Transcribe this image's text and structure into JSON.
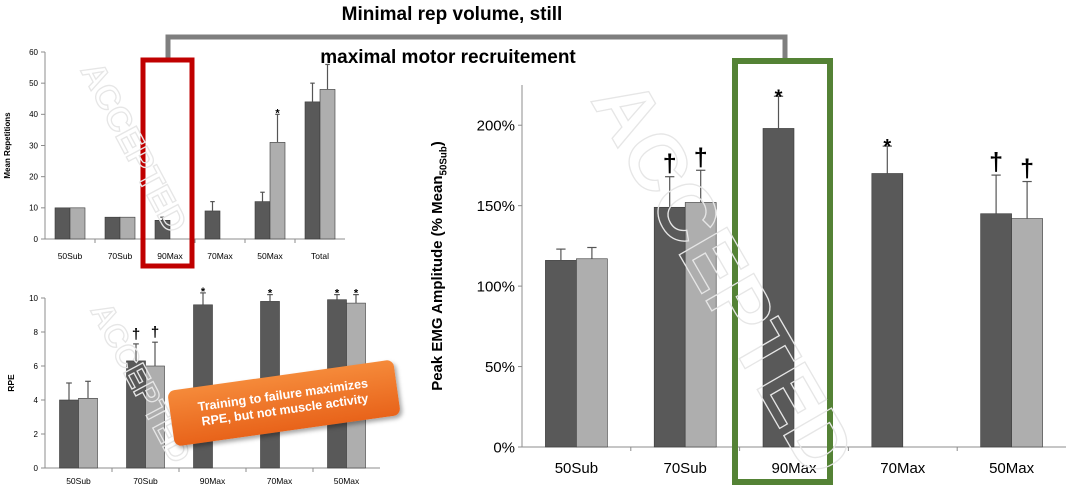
{
  "headline": {
    "line1": "Minimal rep volume, still",
    "line2": "maximal motor recruitement"
  },
  "callout": {
    "text": "Training to failure maximizes RPE, but not muscle activity"
  },
  "watermark": "ACCEPTED",
  "colors": {
    "dark_bar": "#595959",
    "light_bar": "#aeaeae",
    "red_box": "#c00000",
    "green_box": "#548235",
    "bracket": "#7f7f7f",
    "callout": "#ed7125"
  },
  "chart_data": [
    {
      "id": "reps",
      "type": "bar",
      "ylabel": "Mean Repetitions",
      "ylim": [
        0,
        60
      ],
      "yticks": [
        "0",
        "10",
        "20",
        "30",
        "40",
        "50",
        "60"
      ],
      "categories": [
        "50Sub",
        "70Sub",
        "90Max",
        "70Max",
        "50Max",
        "Total"
      ],
      "series": [
        {
          "name": "dark",
          "values": [
            10,
            7,
            6,
            9,
            12,
            44
          ],
          "errors": [
            0,
            0,
            1,
            3,
            3,
            6
          ]
        },
        {
          "name": "light",
          "values": [
            10,
            7,
            null,
            null,
            31,
            48
          ],
          "errors": [
            0,
            0,
            null,
            null,
            9,
            8
          ]
        }
      ],
      "annotations": [
        {
          "category": 4,
          "series": 1,
          "symbol": "*"
        }
      ]
    },
    {
      "id": "rpe",
      "type": "bar",
      "ylabel": "RPE",
      "ylim": [
        0,
        10
      ],
      "yticks": [
        "0",
        "2",
        "4",
        "6",
        "8",
        "10"
      ],
      "categories": [
        "50Sub",
        "70Sub",
        "90Max",
        "70Max",
        "50Max"
      ],
      "series": [
        {
          "name": "dark",
          "values": [
            4.0,
            6.3,
            9.6,
            9.8,
            9.9
          ],
          "errors": [
            1.0,
            1.0,
            0.7,
            0.4,
            0.3
          ]
        },
        {
          "name": "light",
          "values": [
            4.1,
            6.0,
            null,
            null,
            9.7
          ],
          "errors": [
            1.0,
            1.4,
            null,
            null,
            0.5
          ]
        }
      ],
      "annotations": [
        {
          "category": 1,
          "series": 0,
          "symbol": "†"
        },
        {
          "category": 1,
          "series": 1,
          "symbol": "†"
        },
        {
          "category": 2,
          "series": 0,
          "symbol": "*"
        },
        {
          "category": 3,
          "series": 0,
          "symbol": "*"
        },
        {
          "category": 4,
          "series": 0,
          "symbol": "*"
        },
        {
          "category": 4,
          "series": 1,
          "symbol": "*"
        }
      ]
    },
    {
      "id": "emg",
      "type": "bar",
      "ylabel": "Peak EMG Amplitude (% Mean",
      "ylabel_sub": "50Sub",
      "ylabel_end": ")",
      "ylim": [
        0,
        225
      ],
      "yticks": [
        "0%",
        "50%",
        "100%",
        "150%",
        "200%"
      ],
      "ytick_values": [
        0,
        50,
        100,
        150,
        200
      ],
      "categories": [
        "50Sub",
        "70Sub",
        "90Max",
        "70Max",
        "50Max"
      ],
      "series": [
        {
          "name": "dark",
          "values": [
            116,
            149,
            198,
            170,
            145
          ],
          "errors": [
            7,
            19,
            20,
            17,
            24
          ]
        },
        {
          "name": "light",
          "values": [
            117,
            152,
            null,
            null,
            142
          ],
          "errors": [
            7,
            20,
            null,
            null,
            23
          ]
        }
      ],
      "annotations": [
        {
          "category": 1,
          "series": 0,
          "symbol": "†"
        },
        {
          "category": 1,
          "series": 1,
          "symbol": "†"
        },
        {
          "category": 2,
          "series": 0,
          "symbol": "*"
        },
        {
          "category": 3,
          "series": 0,
          "symbol": "*"
        },
        {
          "category": 4,
          "series": 0,
          "symbol": "†"
        },
        {
          "category": 4,
          "series": 1,
          "symbol": "†"
        }
      ]
    }
  ]
}
